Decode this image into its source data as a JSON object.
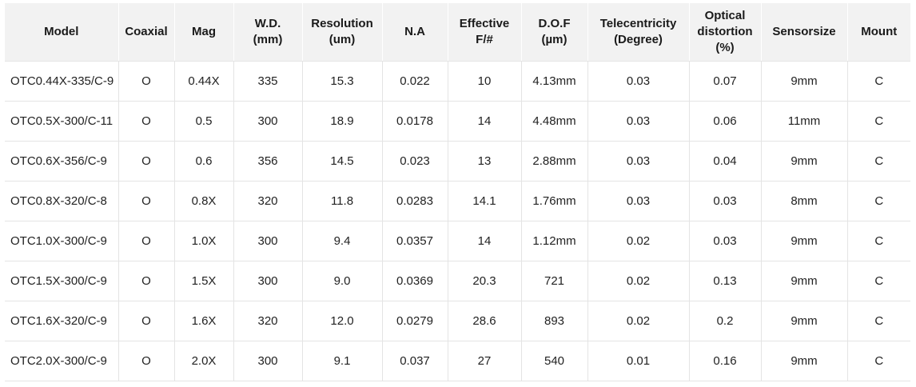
{
  "colors": {
    "header_background": "#f2f2f2",
    "row_background": "#ffffff",
    "grid_line": "#e4e4e4",
    "header_divider": "#ffffff",
    "text": "#222222",
    "header_text": "#1a1a1a"
  },
  "table": {
    "columns": [
      {
        "key": "model",
        "label": "Model"
      },
      {
        "key": "coaxial",
        "label": "Coaxial"
      },
      {
        "key": "mag",
        "label": "Mag"
      },
      {
        "key": "wd",
        "label": "W.D.\n(mm)"
      },
      {
        "key": "resolution",
        "label": "Resolution\n(um)"
      },
      {
        "key": "na",
        "label": "N.A"
      },
      {
        "key": "effective_f_number",
        "label": "Effective\nF/#"
      },
      {
        "key": "dof",
        "label": "D.O.F\n(µm)"
      },
      {
        "key": "telecentricity",
        "label": "Telecentricity\n(Degree)"
      },
      {
        "key": "optical_distortion",
        "label": "Optical\ndistortion\n(%)"
      },
      {
        "key": "sensorsize",
        "label": "Sensorsize"
      },
      {
        "key": "mount",
        "label": "Mount"
      }
    ],
    "rows": [
      [
        "OTC0.44X-335/C-9",
        "O",
        "0.44X",
        "335",
        "15.3",
        "0.022",
        "10",
        "4.13mm",
        "0.03",
        "0.07",
        "9mm",
        "C"
      ],
      [
        "OTC0.5X-300/C-11",
        "O",
        "0.5",
        "300",
        "18.9",
        "0.0178",
        "14",
        "4.48mm",
        "0.03",
        "0.06",
        "11mm",
        "C"
      ],
      [
        "OTC0.6X-356/C-9",
        "O",
        "0.6",
        "356",
        "14.5",
        "0.023",
        "13",
        "2.88mm",
        "0.03",
        "0.04",
        "9mm",
        "C"
      ],
      [
        "OTC0.8X-320/C-8",
        "O",
        "0.8X",
        "320",
        "11.8",
        "0.0283",
        "14.1",
        "1.76mm",
        "0.03",
        "0.03",
        "8mm",
        "C"
      ],
      [
        "OTC1.0X-300/C-9",
        "O",
        "1.0X",
        "300",
        "9.4",
        "0.0357",
        "14",
        "1.12mm",
        "0.02",
        "0.03",
        "9mm",
        "C"
      ],
      [
        "OTC1.5X-300/C-9",
        "O",
        "1.5X",
        "300",
        "9.0",
        "0.0369",
        "20.3",
        "721",
        "0.02",
        "0.13",
        "9mm",
        "C"
      ],
      [
        "OTC1.6X-320/C-9",
        "O",
        "1.6X",
        "320",
        "12.0",
        "0.0279",
        "28.6",
        "893",
        "0.02",
        "0.2",
        "9mm",
        "C"
      ],
      [
        "OTC2.0X-300/C-9",
        "O",
        "2.0X",
        "300",
        "9.1",
        "0.037",
        "27",
        "540",
        "0.01",
        "0.16",
        "9mm",
        "C"
      ]
    ]
  }
}
